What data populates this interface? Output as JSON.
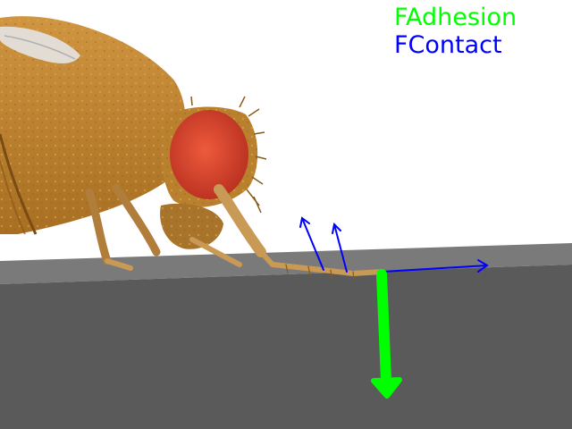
{
  "legend": {
    "adhesion": {
      "label": "FAdhesion",
      "color": "#00ff00"
    },
    "contact": {
      "label": "FContact",
      "color": "#0000ff"
    }
  },
  "colors": {
    "background": "#ffffff",
    "floor_top": "#7a7a7a",
    "floor_front": "#5a5a5a",
    "fly_body": "#c48a2c",
    "fly_eye": "#d9402a",
    "fly_wing": "#dcdcdc",
    "leg": "#c99a55"
  },
  "icons": [
    "fly-model",
    "adhesion-arrow",
    "contact-arrow"
  ]
}
